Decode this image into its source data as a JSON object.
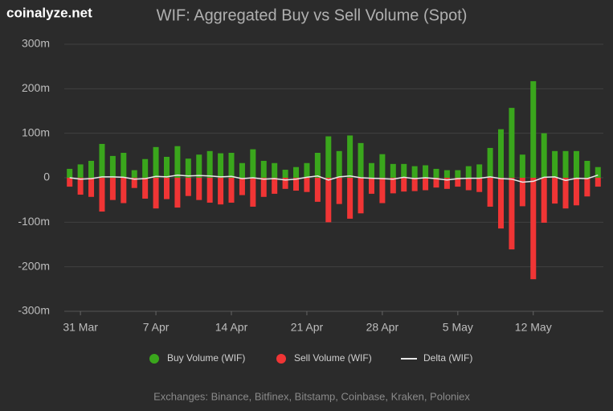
{
  "watermark": "coinalyze.net",
  "footer": "Exchanges: Binance, Bitfinex, Bitstamp, Coinbase, Kraken, Poloniex",
  "chart_data": {
    "type": "bar",
    "title": "WIF: Aggregated Buy vs Sell Volume (Spot)",
    "categories": [
      null,
      "31 Mar",
      null,
      null,
      null,
      null,
      null,
      null,
      "7 Apr",
      null,
      null,
      null,
      null,
      null,
      null,
      "14 Apr",
      null,
      null,
      null,
      null,
      null,
      null,
      "21 Apr",
      null,
      null,
      null,
      null,
      null,
      null,
      "28 Apr",
      null,
      null,
      null,
      null,
      null,
      null,
      "5 May",
      null,
      null,
      null,
      null,
      null,
      null,
      "12 May",
      null,
      null,
      null,
      null,
      null,
      null
    ],
    "series": [
      {
        "name": "Buy Volume (WIF)",
        "color": "#3aa61c",
        "kind": "bar",
        "values": [
          20,
          30,
          38,
          76,
          49,
          56,
          17,
          42,
          69,
          47,
          71,
          43,
          52,
          60,
          55,
          56,
          33,
          64,
          38,
          33,
          18,
          24,
          33,
          56,
          93,
          60,
          95,
          78,
          33,
          53,
          31,
          31,
          26,
          28,
          20,
          17,
          17,
          26,
          30,
          67,
          109,
          157,
          52,
          217,
          100,
          60,
          60,
          60,
          38,
          24
        ]
      },
      {
        "name": "Sell Volume (WIF)",
        "color": "#f03535",
        "kind": "bar",
        "values": [
          -20,
          -38,
          -43,
          -76,
          -50,
          -57,
          -23,
          -47,
          -69,
          -48,
          -67,
          -41,
          -50,
          -56,
          -60,
          -56,
          -39,
          -65,
          -43,
          -36,
          -25,
          -29,
          -32,
          -54,
          -100,
          -59,
          -92,
          -80,
          -36,
          -57,
          -35,
          -31,
          -30,
          -28,
          -22,
          -25,
          -20,
          -28,
          -32,
          -65,
          -114,
          -161,
          -64,
          -228,
          -101,
          -58,
          -69,
          -62,
          -42,
          -20
        ]
      },
      {
        "name": "Delta (WIF)",
        "color": "#e8e8e8",
        "kind": "line",
        "values": [
          0,
          -3,
          -2,
          2,
          2,
          1,
          -3,
          -2,
          3,
          2,
          6,
          4,
          5,
          4,
          2,
          3,
          -2,
          0,
          -3,
          -2,
          -5,
          -3,
          1,
          4,
          -5,
          2,
          4,
          0,
          -1,
          -2,
          -3,
          1,
          -2,
          0,
          -2,
          -5,
          -2,
          -1,
          -1,
          2,
          -2,
          -3,
          -10,
          -8,
          1,
          2,
          -6,
          -1,
          -2,
          6
        ]
      }
    ],
    "ylim": [
      -300,
      300
    ],
    "yticks": [
      {
        "value": -300,
        "label": "-300m"
      },
      {
        "value": -200,
        "label": "-200m"
      },
      {
        "value": -100,
        "label": "-100m"
      },
      0,
      {
        "value": 100,
        "label": "100m"
      },
      {
        "value": 200,
        "label": "200m"
      },
      {
        "value": 300,
        "label": "300m"
      }
    ],
    "grid": true
  }
}
